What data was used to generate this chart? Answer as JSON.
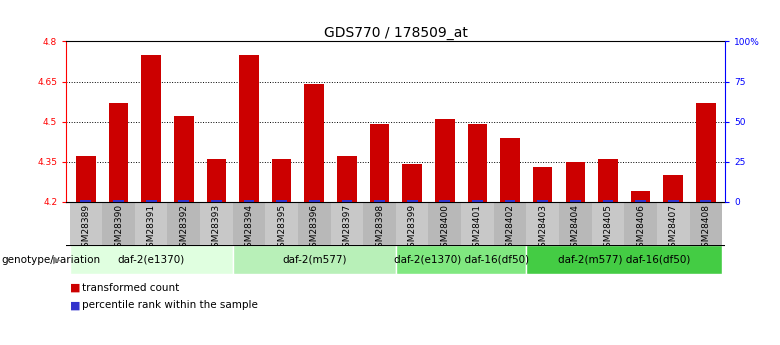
{
  "title": "GDS770 / 178509_at",
  "samples": [
    "GSM28389",
    "GSM28390",
    "GSM28391",
    "GSM28392",
    "GSM28393",
    "GSM28394",
    "GSM28395",
    "GSM28396",
    "GSM28397",
    "GSM28398",
    "GSM28399",
    "GSM28400",
    "GSM28401",
    "GSM28402",
    "GSM28403",
    "GSM28404",
    "GSM28405",
    "GSM28406",
    "GSM28407",
    "GSM28408"
  ],
  "transformed_counts": [
    4.37,
    4.57,
    4.75,
    4.52,
    4.36,
    4.75,
    4.36,
    4.64,
    4.37,
    4.49,
    4.34,
    4.51,
    4.49,
    4.44,
    4.33,
    4.35,
    4.36,
    4.24,
    4.3,
    4.57
  ],
  "ylim_left": [
    4.2,
    4.8
  ],
  "yticks_left": [
    4.2,
    4.35,
    4.5,
    4.65,
    4.8
  ],
  "ytick_labels_right": [
    "0",
    "25",
    "50",
    "75",
    "100%"
  ],
  "yticks_right": [
    0,
    25,
    50,
    75,
    100
  ],
  "hlines": [
    4.35,
    4.5,
    4.65
  ],
  "bar_color": "#cc0000",
  "percentile_color": "#3333cc",
  "groups": [
    {
      "label": "daf-2(e1370)",
      "start": 0,
      "end": 4,
      "color": "#e0ffe0"
    },
    {
      "label": "daf-2(m577)",
      "start": 5,
      "end": 9,
      "color": "#b8f0b8"
    },
    {
      "label": "daf-2(e1370) daf-16(df50)",
      "start": 10,
      "end": 13,
      "color": "#80e880"
    },
    {
      "label": "daf-2(m577) daf-16(df50)",
      "start": 14,
      "end": 19,
      "color": "#44cc44"
    }
  ],
  "xlabel_label": "genotype/variation",
  "legend_items": [
    {
      "label": "transformed count",
      "color": "#cc0000"
    },
    {
      "label": "percentile rank within the sample",
      "color": "#3333cc"
    }
  ],
  "bar_width": 0.6,
  "title_fontsize": 10,
  "tick_fontsize": 6.5,
  "group_label_fontsize": 7.5,
  "axis_label_fontsize": 7.5,
  "legend_fontsize": 7.5
}
